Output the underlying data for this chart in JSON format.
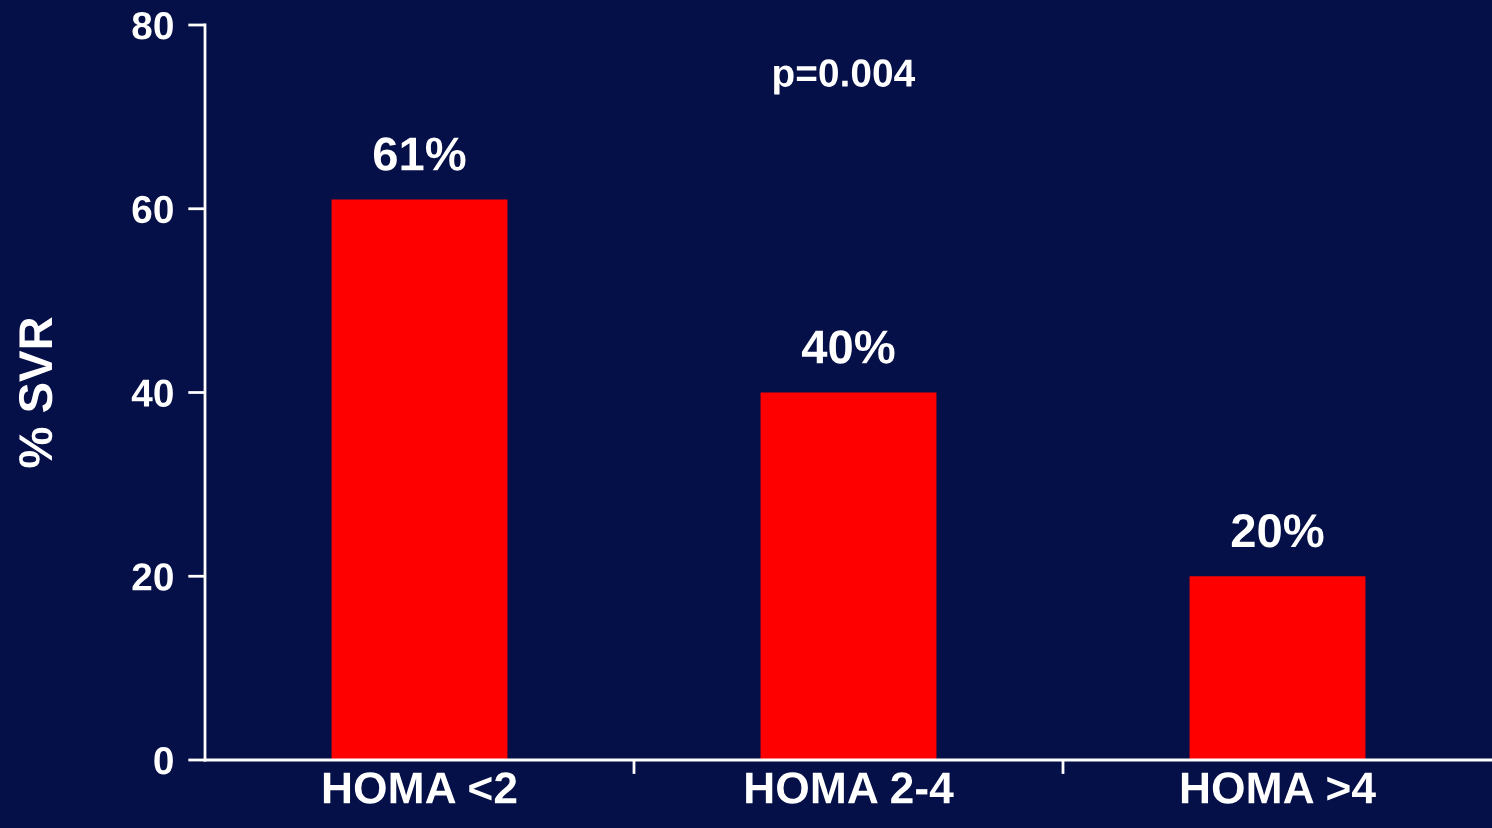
{
  "chart_data": {
    "type": "bar",
    "ylabel": "% SVR",
    "categories": [
      "HOMA <2",
      "HOMA 2-4",
      "HOMA >4"
    ],
    "values": [
      61,
      40,
      20
    ],
    "value_labels": [
      "61%",
      "40%",
      "20%"
    ],
    "color": "#ff0000",
    "ylim": [
      0,
      80
    ],
    "yticks": [
      0,
      20,
      40,
      60,
      80
    ],
    "grid": false,
    "annotations": [
      "p=0.004"
    ]
  }
}
